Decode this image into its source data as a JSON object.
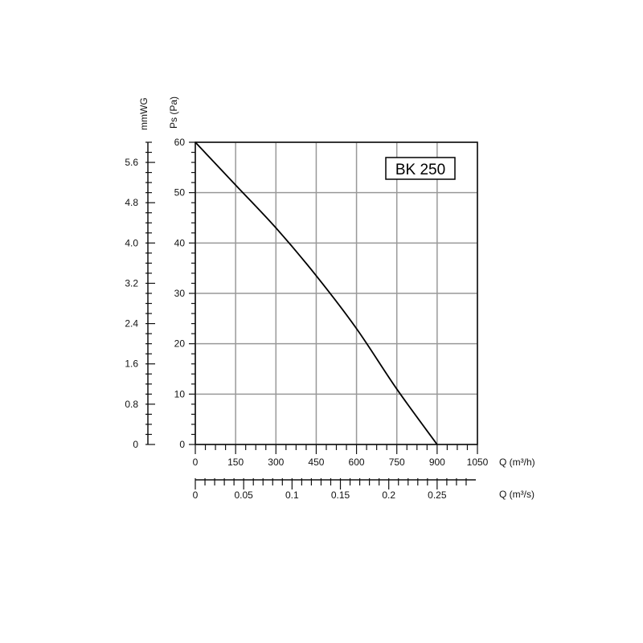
{
  "chart_data": {
    "type": "line",
    "model_label": "BK 250",
    "y_label": "Ps (Pa)",
    "y2_label": "mmWG",
    "x_label": "Q (m³/h)",
    "x2_label": "Q (m³/s)",
    "ylim": [
      0,
      60
    ],
    "xlim": [
      0,
      1050
    ],
    "y_ticks": [
      0,
      10,
      20,
      30,
      40,
      50,
      60
    ],
    "y2_ticks": [
      "0",
      "0.8",
      "1.6",
      "2.4",
      "3.2",
      "4.0",
      "4.8",
      "5.6"
    ],
    "y2_tick_values": [
      0,
      0.8,
      1.6,
      2.4,
      3.2,
      4.0,
      4.8,
      5.6
    ],
    "y2_max": 6.0,
    "x_ticks": [
      0,
      150,
      300,
      450,
      600,
      750,
      900,
      1050
    ],
    "x2_ticks": [
      "0",
      "0.05",
      "0.1",
      "0.15",
      "0.2",
      "0.25"
    ],
    "x2_tick_values": [
      0,
      0.05,
      0.1,
      0.15,
      0.2,
      0.25
    ],
    "grid": true,
    "series": [
      {
        "x": [
          0,
          150,
          300,
          450,
          600,
          750,
          900
        ],
        "y": [
          60,
          51.5,
          43,
          33.5,
          23,
          11,
          0
        ]
      }
    ]
  }
}
